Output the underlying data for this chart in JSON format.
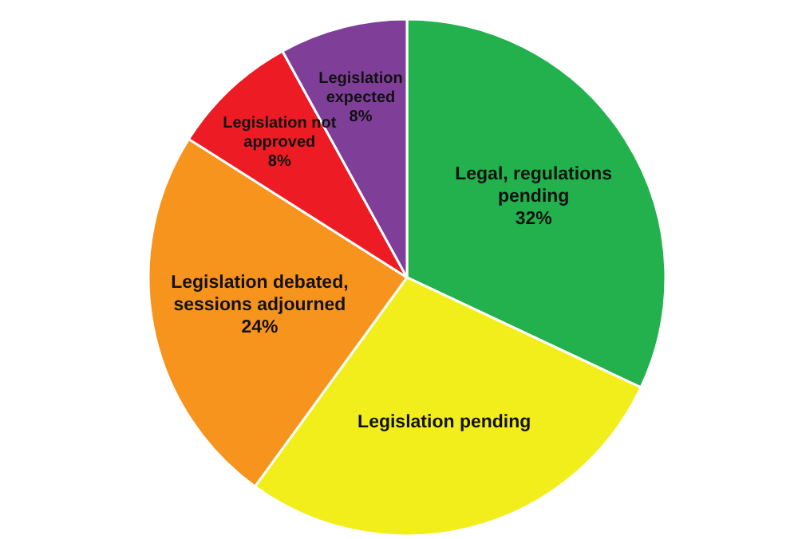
{
  "chart_data": {
    "type": "pie",
    "categories": [
      "Legal, regulations pending",
      "Legislation pending",
      "Legislation debated, sessions adjourned",
      "Legislation not approved",
      "Legislation expected"
    ],
    "values": [
      32,
      28,
      24,
      8,
      8
    ],
    "colors": [
      "#22b14c",
      "#f2ee1c",
      "#f7941d",
      "#ed1c24",
      "#7f3f98"
    ],
    "value_labels": [
      "32%",
      null,
      "24%",
      "8%",
      "8%"
    ],
    "legend": false
  }
}
